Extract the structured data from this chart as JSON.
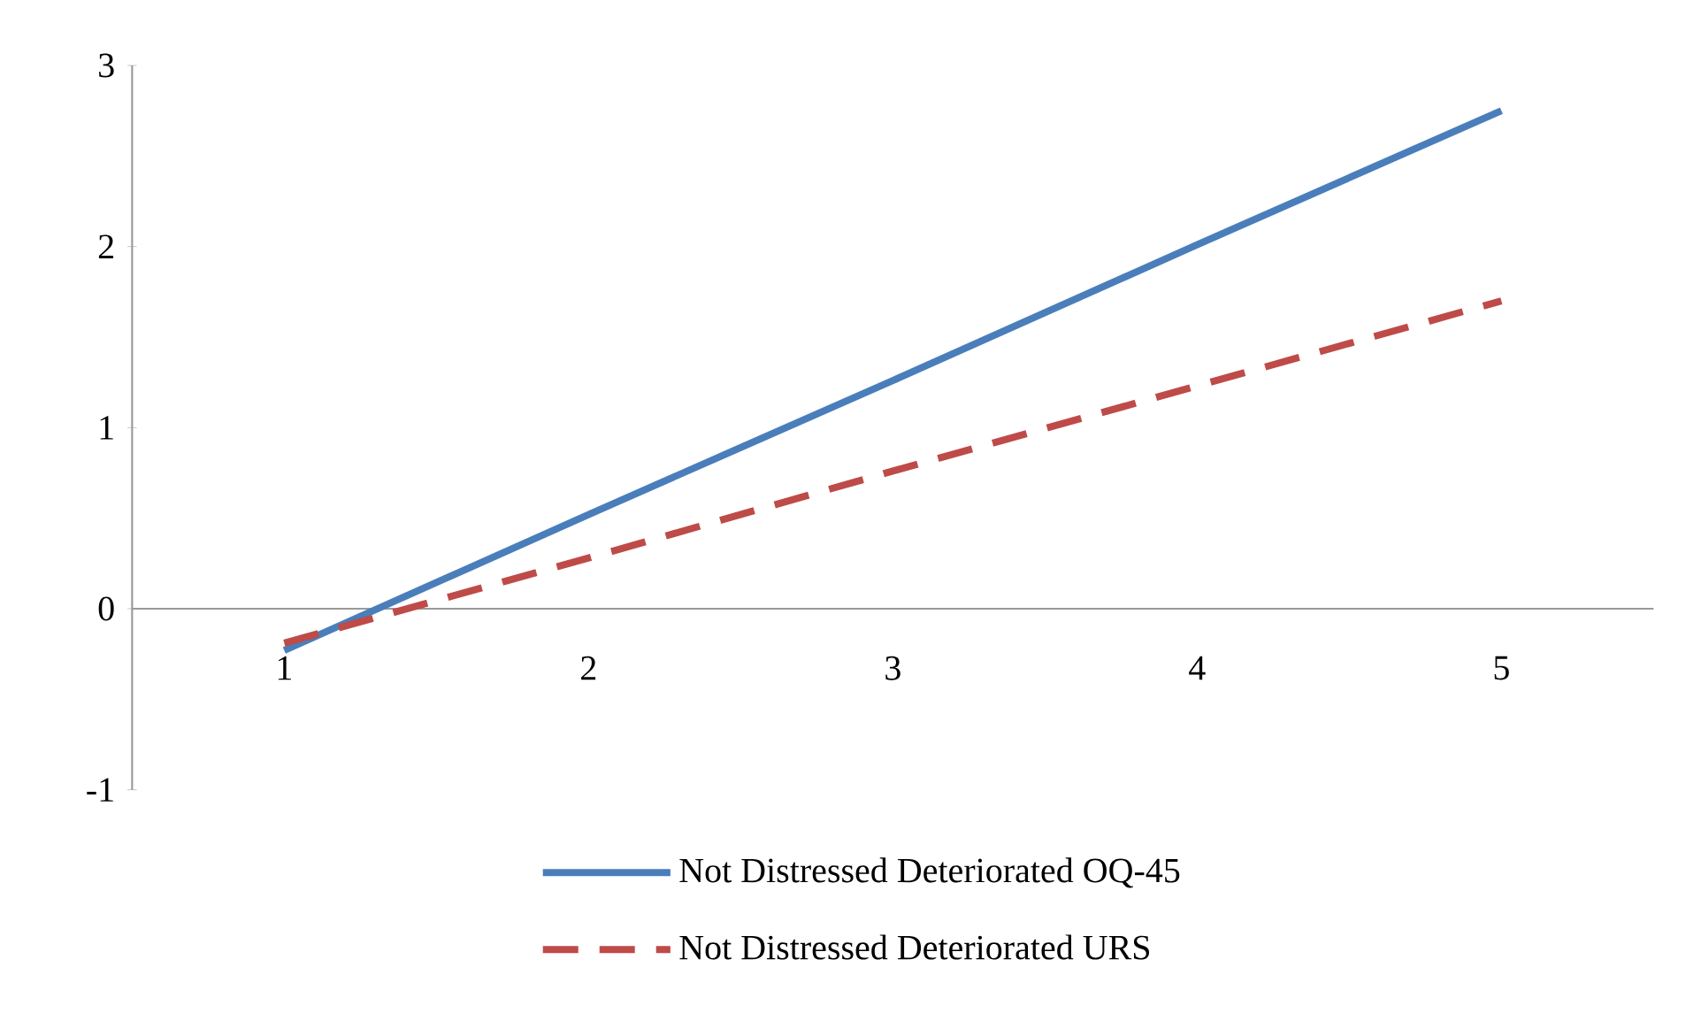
{
  "chart_data": {
    "type": "line",
    "categories": [
      "1",
      "2",
      "3",
      "4",
      "5"
    ],
    "series": [
      {
        "name": "Not Distressed Deteriorated OQ-45",
        "color": "#4a7ebb",
        "line_style": "solid",
        "values": [
          -0.23,
          0.52,
          1.26,
          2.01,
          2.75
        ]
      },
      {
        "name": "Not Distressed Deteriorated URS",
        "color": "#be4b48",
        "line_style": "dashed",
        "values": [
          -0.19,
          0.28,
          0.76,
          1.23,
          1.7
        ]
      }
    ],
    "ylim": [
      -1,
      3
    ],
    "yticks": [
      -1,
      0,
      1,
      2,
      3
    ],
    "legend": "bottom",
    "marker": "none"
  }
}
